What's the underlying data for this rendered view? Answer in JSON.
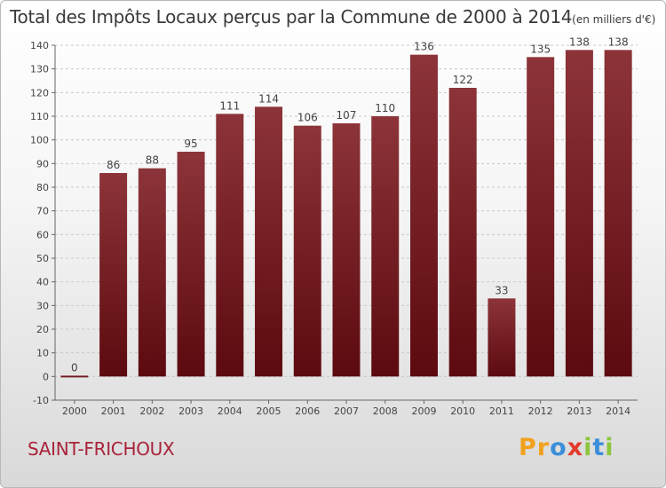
{
  "chart_data": {
    "type": "bar",
    "title": "Total des Impôts Locaux perçus par la Commune de 2000 à 2014",
    "unit": "(en milliers d'€)",
    "categories": [
      "2000",
      "2001",
      "2002",
      "2003",
      "2004",
      "2005",
      "2006",
      "2007",
      "2008",
      "2009",
      "2010",
      "2011",
      "2012",
      "2013",
      "2014"
    ],
    "values": [
      0,
      86,
      88,
      95,
      111,
      114,
      106,
      107,
      110,
      136,
      122,
      33,
      135,
      138,
      138
    ],
    "ylim": [
      -10,
      140
    ],
    "yticks": [
      -10,
      0,
      10,
      20,
      30,
      40,
      50,
      60,
      70,
      80,
      90,
      100,
      110,
      120,
      130,
      140
    ],
    "xlabel": "",
    "ylabel": "",
    "grid": "horizontal dashed",
    "bar_color": "#5c0a0f",
    "bar_highlight": "#8c3439"
  },
  "commune": "SAINT-FRICHOUX",
  "logo": {
    "letters": [
      "P",
      "r",
      "o",
      "x",
      "i",
      "t",
      "i"
    ],
    "colors": [
      "#f2a11e",
      "#f2a11e",
      "#3b8fd9",
      "#e23b2e",
      "#8cc63f",
      "#3b8fd9",
      "#8cc63f"
    ]
  }
}
